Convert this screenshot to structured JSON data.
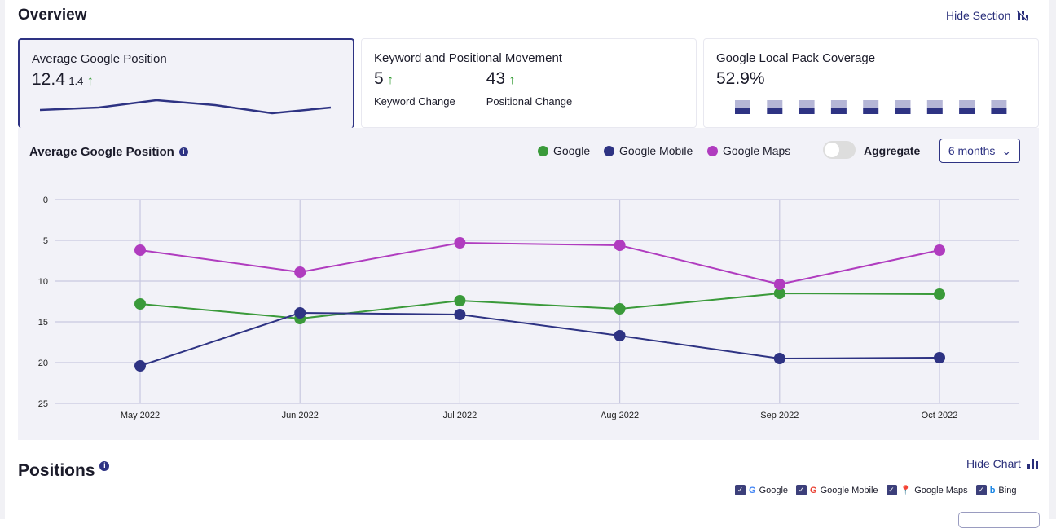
{
  "overview": {
    "title": "Overview",
    "hide_section": "Hide Section"
  },
  "cards": [
    {
      "title": "Average Google Position",
      "value": "12.4",
      "delta": "1.4",
      "trend": "up"
    },
    {
      "title": "Keyword and Positional Movement",
      "keyword_value": "5",
      "keyword_label": "Keyword Change",
      "positional_value": "43",
      "positional_label": "Positional Change"
    },
    {
      "title": "Google Local Pack Coverage",
      "value": "52.9%"
    }
  ],
  "chart_panel": {
    "title": "Average Google Position",
    "aggregate_label": "Aggregate",
    "aggregate_on": false,
    "range": "6 months"
  },
  "colors": {
    "google": "#3a9a3a",
    "google_mobile": "#2e3383",
    "google_maps": "#b03cbf",
    "accent": "#2e3383"
  },
  "chart_data": {
    "type": "line",
    "categories": [
      "May 2022",
      "Jun 2022",
      "Jul 2022",
      "Aug 2022",
      "Sep 2022",
      "Oct 2022"
    ],
    "ylim": [
      0,
      25
    ],
    "y_reversed": true,
    "yticks": [
      0,
      5,
      10,
      15,
      20,
      25
    ],
    "grid": true,
    "legend": "top-right",
    "series": [
      {
        "name": "Google",
        "values": [
          12.8,
          14.6,
          12.4,
          13.4,
          11.5,
          11.6
        ]
      },
      {
        "name": "Google Mobile",
        "values": [
          20.4,
          13.9,
          14.1,
          16.7,
          19.5,
          19.4
        ]
      },
      {
        "name": "Google Maps",
        "values": [
          6.2,
          8.9,
          5.3,
          5.6,
          10.4,
          6.2
        ]
      }
    ]
  },
  "positions": {
    "title": "Positions",
    "hide_chart": "Hide Chart",
    "engines": [
      {
        "label": "Google",
        "checked": true
      },
      {
        "label": "Google Mobile",
        "checked": true
      },
      {
        "label": "Google Maps",
        "checked": true
      },
      {
        "label": "Bing",
        "checked": true
      }
    ]
  }
}
